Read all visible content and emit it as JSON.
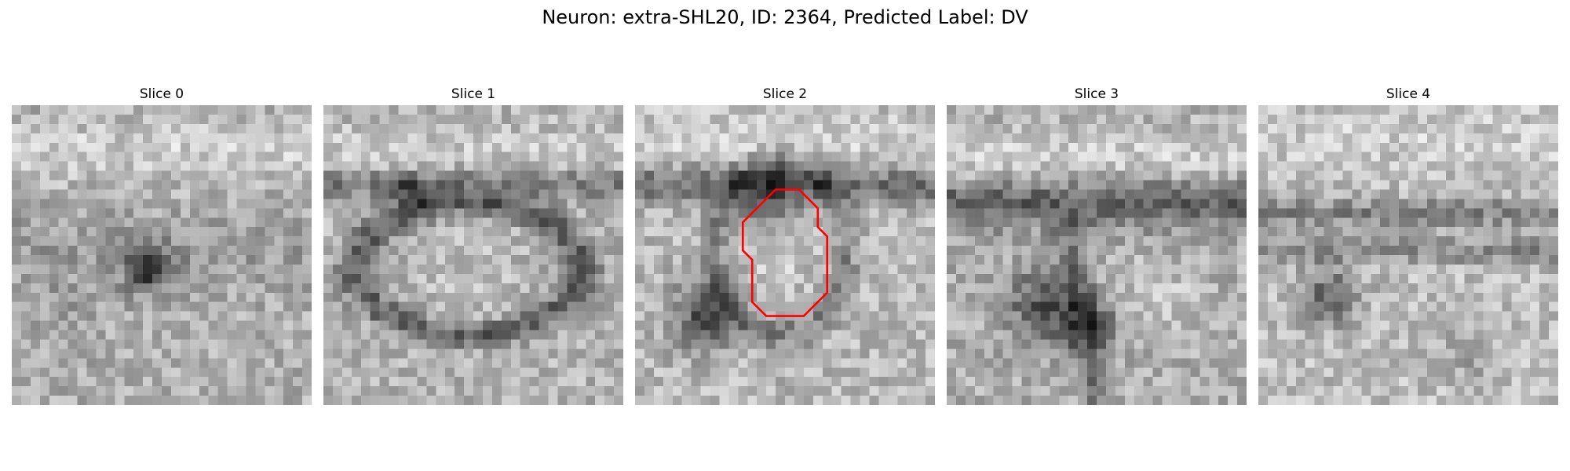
{
  "figure": {
    "title": "Neuron: extra-SHL20, ID: 2364, Predicted Label: DV",
    "panels": [
      {
        "title": "Slice 0"
      },
      {
        "title": "Slice 1"
      },
      {
        "title": "Slice 2"
      },
      {
        "title": "Slice 3"
      },
      {
        "title": "Slice 4"
      }
    ],
    "colormap": "grayscale",
    "contour_color": "#ff0000"
  }
}
